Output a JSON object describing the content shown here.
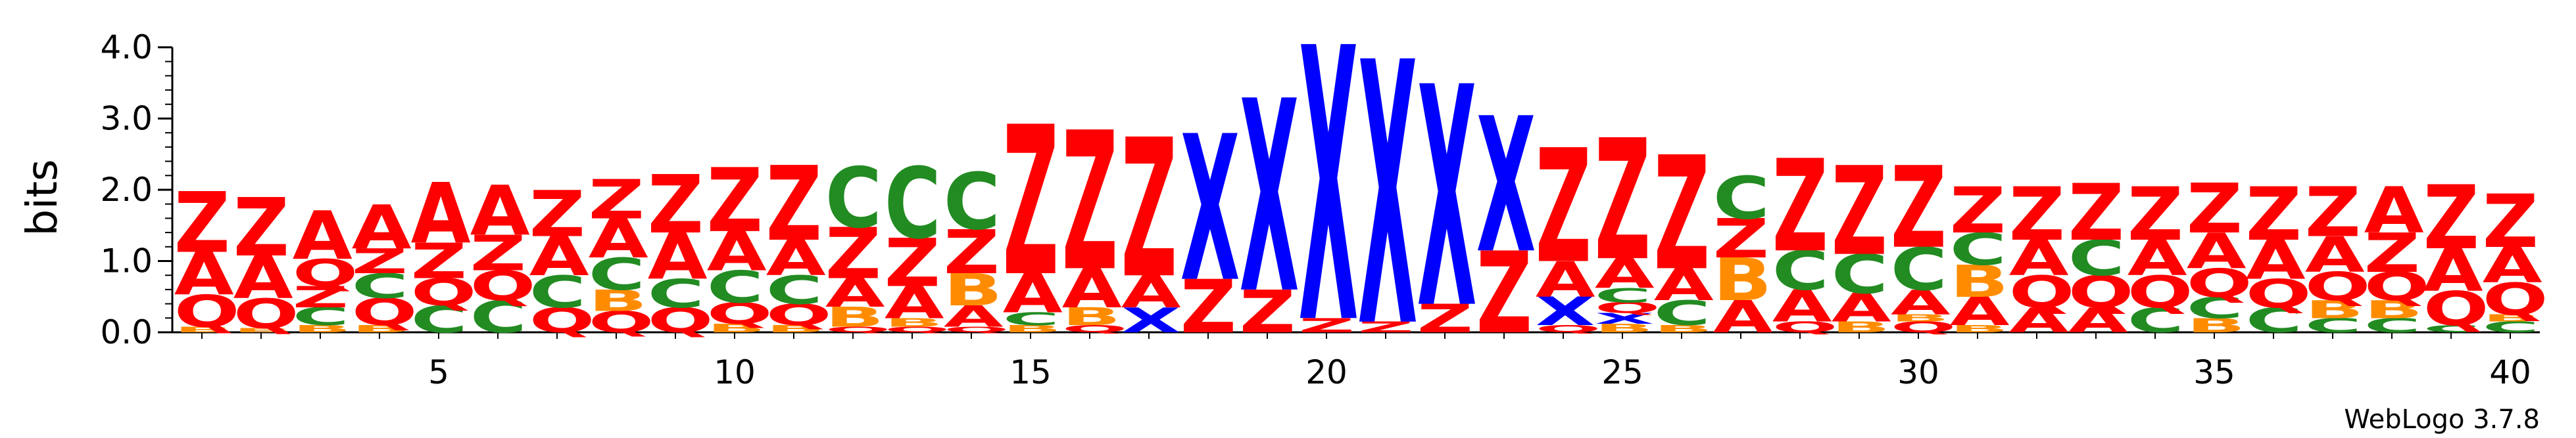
{
  "chart_data": {
    "type": "sequence_logo",
    "ylabel": "bits",
    "xlabel": "",
    "ylim": [
      0,
      4.0
    ],
    "yticks": [
      "0.0",
      "1.0",
      "2.0",
      "3.0",
      "4.0"
    ],
    "xticks": [
      "5",
      "10",
      "15",
      "20",
      "25",
      "30",
      "35",
      "40"
    ],
    "positions": 40,
    "credit": "WebLogo 3.7.8",
    "letter_colors": {
      "Z": "#ff0000",
      "A": "#ff0000",
      "Q": "#ff0000",
      "C": "#228b22",
      "B": "#ff8c00",
      "X": "#0000ff"
    },
    "stacks": [
      [
        {
          "l": "B",
          "h": 0.08
        },
        {
          "l": "Q",
          "h": 0.45
        },
        {
          "l": "A",
          "h": 0.6
        },
        {
          "l": "Z",
          "h": 0.85
        }
      ],
      [
        {
          "l": "B",
          "h": 0.06
        },
        {
          "l": "Q",
          "h": 0.42
        },
        {
          "l": "A",
          "h": 0.6
        },
        {
          "l": "Z",
          "h": 0.82
        }
      ],
      [
        {
          "l": "B",
          "h": 0.1
        },
        {
          "l": "C",
          "h": 0.25
        },
        {
          "l": "Z",
          "h": 0.3
        },
        {
          "l": "Q",
          "h": 0.38
        },
        {
          "l": "A",
          "h": 0.68
        }
      ],
      [
        {
          "l": "B",
          "h": 0.1
        },
        {
          "l": "Q",
          "h": 0.38
        },
        {
          "l": "C",
          "h": 0.35
        },
        {
          "l": "Z",
          "h": 0.35
        },
        {
          "l": "A",
          "h": 0.62
        }
      ],
      [
        {
          "l": "C",
          "h": 0.38
        },
        {
          "l": "Q",
          "h": 0.38
        },
        {
          "l": "Z",
          "h": 0.5
        },
        {
          "l": "A",
          "h": 0.85
        }
      ],
      [
        {
          "l": "C",
          "h": 0.45
        },
        {
          "l": "Q",
          "h": 0.42
        },
        {
          "l": "Z",
          "h": 0.5
        },
        {
          "l": "A",
          "h": 0.7
        }
      ],
      [
        {
          "l": "Q",
          "h": 0.35
        },
        {
          "l": "C",
          "h": 0.45
        },
        {
          "l": "A",
          "h": 0.55
        },
        {
          "l": "Z",
          "h": 0.65
        }
      ],
      [
        {
          "l": "Q",
          "h": 0.3
        },
        {
          "l": "B",
          "h": 0.3
        },
        {
          "l": "C",
          "h": 0.45
        },
        {
          "l": "A",
          "h": 0.55
        },
        {
          "l": "Z",
          "h": 0.55
        }
      ],
      [
        {
          "l": "Q",
          "h": 0.35
        },
        {
          "l": "C",
          "h": 0.4
        },
        {
          "l": "A",
          "h": 0.65
        },
        {
          "l": "Z",
          "h": 0.82
        }
      ],
      [
        {
          "l": "B",
          "h": 0.12
        },
        {
          "l": "Q",
          "h": 0.3
        },
        {
          "l": "C",
          "h": 0.45
        },
        {
          "l": "A",
          "h": 0.55
        },
        {
          "l": "Z",
          "h": 0.9
        }
      ],
      [
        {
          "l": "B",
          "h": 0.1
        },
        {
          "l": "Q",
          "h": 0.3
        },
        {
          "l": "C",
          "h": 0.4
        },
        {
          "l": "A",
          "h": 0.5
        },
        {
          "l": "Z",
          "h": 1.05
        }
      ],
      [
        {
          "l": "Q",
          "h": 0.08
        },
        {
          "l": "B",
          "h": 0.28
        },
        {
          "l": "A",
          "h": 0.4
        },
        {
          "l": "Z",
          "h": 0.72
        },
        {
          "l": "C",
          "h": 0.85
        }
      ],
      [
        {
          "l": "Q",
          "h": 0.08
        },
        {
          "l": "B",
          "h": 0.12
        },
        {
          "l": "A",
          "h": 0.45
        },
        {
          "l": "Z",
          "h": 0.68
        },
        {
          "l": "C",
          "h": 1.0
        }
      ],
      [
        {
          "l": "Q",
          "h": 0.08
        },
        {
          "l": "A",
          "h": 0.3
        },
        {
          "l": "B",
          "h": 0.45
        },
        {
          "l": "Z",
          "h": 0.62
        },
        {
          "l": "C",
          "h": 0.8
        }
      ],
      [
        {
          "l": "B",
          "h": 0.1
        },
        {
          "l": "C",
          "h": 0.18
        },
        {
          "l": "A",
          "h": 0.55
        },
        {
          "l": "Z",
          "h": 2.1
        }
      ],
      [
        {
          "l": "Q",
          "h": 0.1
        },
        {
          "l": "B",
          "h": 0.25
        },
        {
          "l": "A",
          "h": 0.55
        },
        {
          "l": "Z",
          "h": 1.95
        }
      ],
      [
        {
          "l": "X",
          "h": 0.35
        },
        {
          "l": "A",
          "h": 0.45
        },
        {
          "l": "Z",
          "h": 1.95
        }
      ],
      [
        {
          "l": "Z",
          "h": 0.75
        },
        {
          "l": "X",
          "h": 2.05
        }
      ],
      [
        {
          "l": "Z",
          "h": 0.6
        },
        {
          "l": "X",
          "h": 2.7
        }
      ],
      [
        {
          "l": "Z",
          "h": 0.2
        },
        {
          "l": "X",
          "h": 3.85
        }
      ],
      [
        {
          "l": "Z",
          "h": 0.15
        },
        {
          "l": "X",
          "h": 3.7
        }
      ],
      [
        {
          "l": "Z",
          "h": 0.4
        },
        {
          "l": "X",
          "h": 3.1
        }
      ],
      [
        {
          "l": "Z",
          "h": 1.15
        },
        {
          "l": "X",
          "h": 1.9
        }
      ],
      [
        {
          "l": "Q",
          "h": 0.1
        },
        {
          "l": "X",
          "h": 0.4
        },
        {
          "l": "A",
          "h": 0.5
        },
        {
          "l": "Z",
          "h": 1.6
        }
      ],
      [
        {
          "l": "B",
          "h": 0.12
        },
        {
          "l": "X",
          "h": 0.15
        },
        {
          "l": "Q",
          "h": 0.15
        },
        {
          "l": "C",
          "h": 0.2
        },
        {
          "l": "A",
          "h": 0.42
        },
        {
          "l": "Z",
          "h": 1.7
        }
      ],
      [
        {
          "l": "B",
          "h": 0.1
        },
        {
          "l": "C",
          "h": 0.35
        },
        {
          "l": "A",
          "h": 0.45
        },
        {
          "l": "Z",
          "h": 1.6
        }
      ],
      [
        {
          "l": "A",
          "h": 0.45
        },
        {
          "l": "B",
          "h": 0.6
        },
        {
          "l": "Z",
          "h": 0.55
        },
        {
          "l": "C",
          "h": 0.6
        }
      ],
      [
        {
          "l": "Q",
          "h": 0.15
        },
        {
          "l": "A",
          "h": 0.45
        },
        {
          "l": "C",
          "h": 0.55
        },
        {
          "l": "Z",
          "h": 1.3
        }
      ],
      [
        {
          "l": "B",
          "h": 0.15
        },
        {
          "l": "A",
          "h": 0.4
        },
        {
          "l": "C",
          "h": 0.55
        },
        {
          "l": "Z",
          "h": 1.25
        }
      ],
      [
        {
          "l": "Q",
          "h": 0.15
        },
        {
          "l": "B",
          "h": 0.1
        },
        {
          "l": "A",
          "h": 0.35
        },
        {
          "l": "C",
          "h": 0.6
        },
        {
          "l": "Z",
          "h": 1.15
        }
      ],
      [
        {
          "l": "B",
          "h": 0.1
        },
        {
          "l": "A",
          "h": 0.4
        },
        {
          "l": "B",
          "h": 0.45
        },
        {
          "l": "C",
          "h": 0.45
        },
        {
          "l": "Z",
          "h": 0.65
        }
      ],
      [
        {
          "l": "A",
          "h": 0.35
        },
        {
          "l": "Q",
          "h": 0.45
        },
        {
          "l": "A",
          "h": 0.5
        },
        {
          "l": "Z",
          "h": 0.75
        }
      ],
      [
        {
          "l": "A",
          "h": 0.35
        },
        {
          "l": "Q",
          "h": 0.45
        },
        {
          "l": "C",
          "h": 0.5
        },
        {
          "l": "Z",
          "h": 0.8
        }
      ],
      [
        {
          "l": "C",
          "h": 0.35
        },
        {
          "l": "Q",
          "h": 0.45
        },
        {
          "l": "A",
          "h": 0.5
        },
        {
          "l": "Z",
          "h": 0.75
        }
      ],
      [
        {
          "l": "B",
          "h": 0.2
        },
        {
          "l": "C",
          "h": 0.3
        },
        {
          "l": "Q",
          "h": 0.4
        },
        {
          "l": "A",
          "h": 0.5
        },
        {
          "l": "Z",
          "h": 0.7
        }
      ],
      [
        {
          "l": "C",
          "h": 0.35
        },
        {
          "l": "Q",
          "h": 0.4
        },
        {
          "l": "A",
          "h": 0.55
        },
        {
          "l": "Z",
          "h": 0.75
        }
      ],
      [
        {
          "l": "C",
          "h": 0.2
        },
        {
          "l": "B",
          "h": 0.25
        },
        {
          "l": "Q",
          "h": 0.4
        },
        {
          "l": "A",
          "h": 0.5
        },
        {
          "l": "Z",
          "h": 0.7
        }
      ],
      [
        {
          "l": "C",
          "h": 0.2
        },
        {
          "l": "B",
          "h": 0.25
        },
        {
          "l": "Q",
          "h": 0.4
        },
        {
          "l": "Z",
          "h": 0.55
        },
        {
          "l": "A",
          "h": 0.65
        }
      ],
      [
        {
          "l": "C",
          "h": 0.1
        },
        {
          "l": "Q",
          "h": 0.48
        },
        {
          "l": "A",
          "h": 0.6
        },
        {
          "l": "Z",
          "h": 0.9
        }
      ],
      [
        {
          "l": "C",
          "h": 0.15
        },
        {
          "l": "B",
          "h": 0.1
        },
        {
          "l": "Q",
          "h": 0.45
        },
        {
          "l": "A",
          "h": 0.5
        },
        {
          "l": "Z",
          "h": 0.75
        }
      ]
    ]
  }
}
